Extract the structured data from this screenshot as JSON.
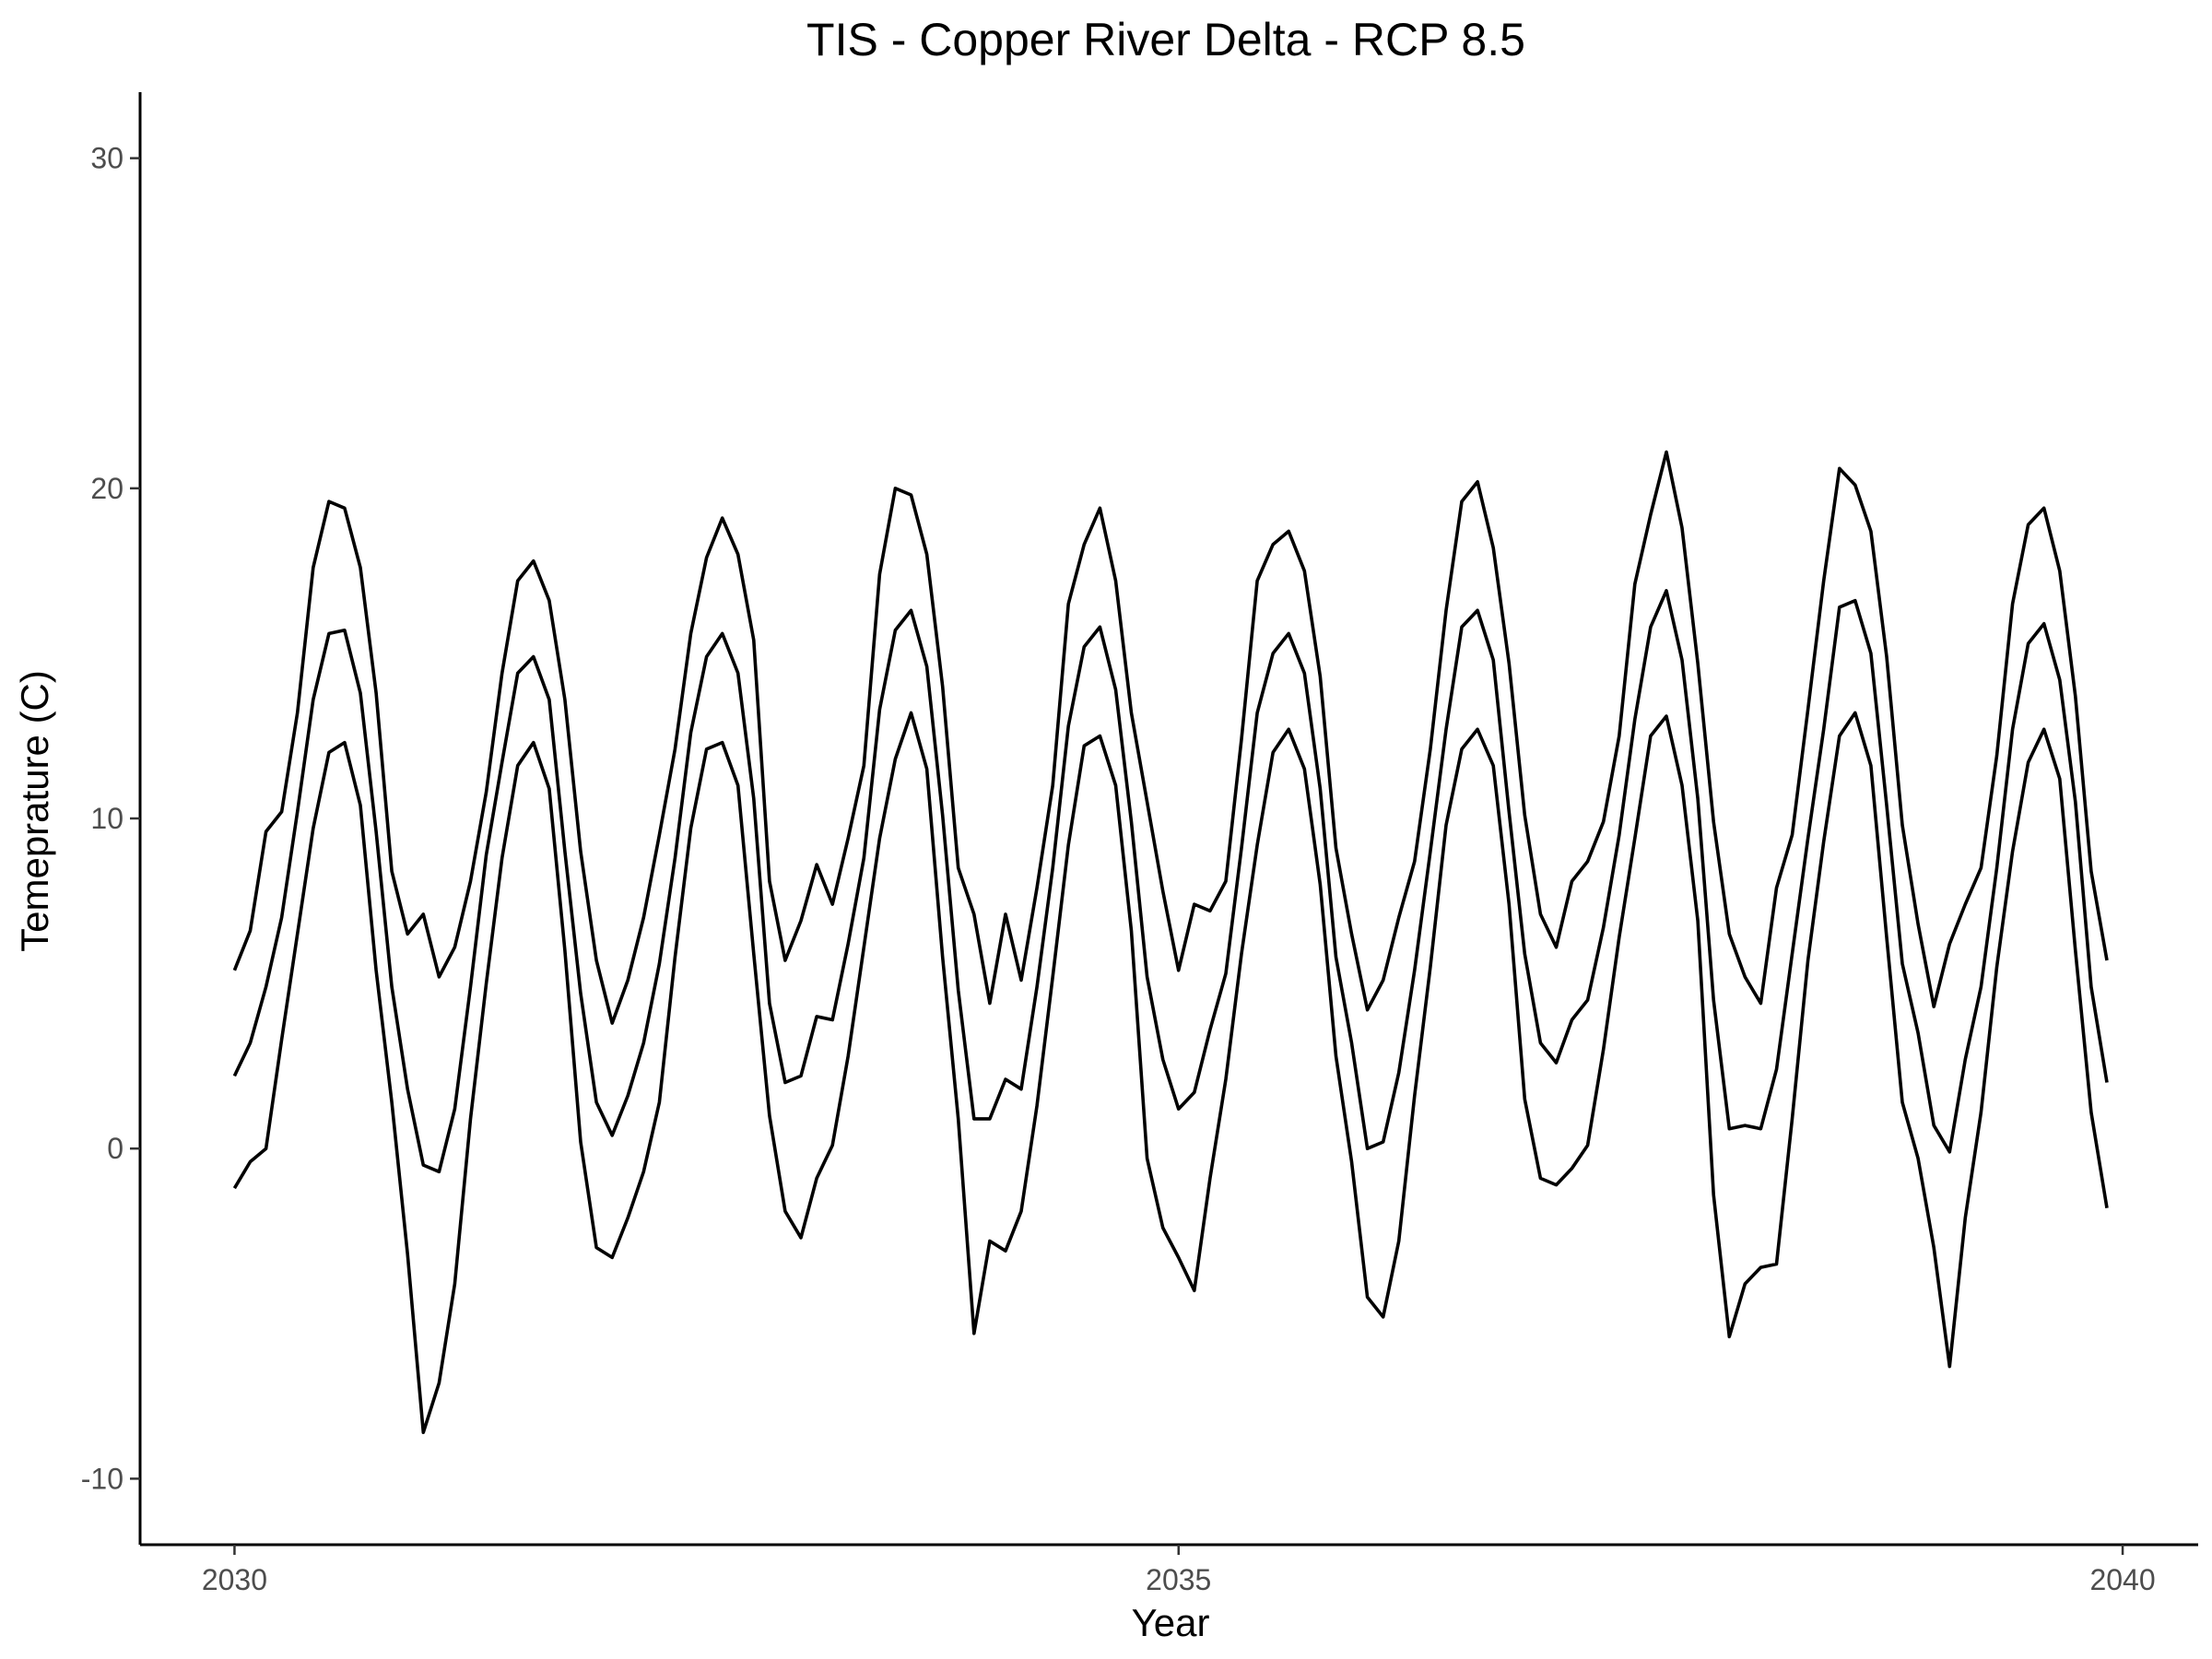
{
  "chart_data": {
    "type": "line",
    "title": "TIS - Copper River Delta - RCP 8.5",
    "xlabel": "Year",
    "ylabel": "Temeprature (C)",
    "xlim": [
      2029.5,
      2040.4
    ],
    "ylim": [
      -12,
      32
    ],
    "x_ticks": [
      2030,
      2035,
      2040
    ],
    "y_ticks": [
      -10,
      0,
      10,
      20,
      30
    ],
    "x_tick_labels": [
      "2030",
      "2035",
      "2040"
    ],
    "y_tick_labels": [
      "-10",
      "0",
      "10",
      "20",
      "30"
    ],
    "grid": false,
    "legend": "none",
    "line_color": "#000000",
    "x_start": 2030,
    "x_step_months": 1,
    "series": [
      {
        "values": [
          5.4,
          6.6,
          9.6,
          10.2,
          13.2,
          17.6,
          19.6,
          19.4,
          17.6,
          13.8,
          8.4,
          6.5,
          7.1,
          5.2,
          6.1,
          8.1,
          10.8,
          14.4,
          17.2,
          17.8,
          16.6,
          13.6,
          9.0,
          5.7,
          3.8,
          5.1,
          7.0,
          9.5,
          12.1,
          15.6,
          17.9,
          19.1,
          18.0,
          15.4,
          8.1,
          5.7,
          6.9,
          8.6,
          7.4,
          9.4,
          11.6,
          17.4,
          20.0,
          19.8,
          18.0,
          14.0,
          8.5,
          7.1,
          4.4,
          7.1,
          5.1,
          7.9,
          11.0,
          16.5,
          18.3,
          19.4,
          17.2,
          13.2,
          10.5,
          7.8,
          5.4,
          7.4,
          7.2,
          8.1,
          12.4,
          17.2,
          18.3,
          18.7,
          17.5,
          14.3,
          9.1,
          6.5,
          4.2,
          5.1,
          7.0,
          8.7,
          12.1,
          16.3,
          19.6,
          20.2,
          18.2,
          14.7,
          10.1,
          7.1,
          6.1,
          8.1,
          8.7,
          9.9,
          12.5,
          17.1,
          19.2,
          21.1,
          18.8,
          14.7,
          9.9,
          6.5,
          5.2,
          4.4,
          7.9,
          9.5,
          13.3,
          17.2,
          20.6,
          20.1,
          18.7,
          14.9,
          9.8,
          6.8,
          4.3,
          6.2,
          7.4,
          8.5,
          11.9,
          16.5,
          18.9,
          19.4,
          17.5,
          13.7,
          8.4,
          5.7
        ]
      },
      {
        "values": [
          2.2,
          3.2,
          4.9,
          7.0,
          10.2,
          13.6,
          15.6,
          15.7,
          13.8,
          9.6,
          4.9,
          1.8,
          -0.5,
          -0.7,
          1.2,
          4.9,
          8.9,
          11.7,
          14.4,
          14.9,
          13.6,
          9.0,
          4.7,
          1.4,
          0.4,
          1.6,
          3.2,
          5.6,
          8.8,
          12.6,
          14.9,
          15.6,
          14.4,
          10.6,
          4.4,
          2.0,
          2.2,
          4.0,
          3.9,
          6.2,
          8.8,
          13.3,
          15.7,
          16.3,
          14.6,
          10.1,
          4.8,
          0.9,
          0.9,
          2.1,
          1.8,
          4.9,
          8.5,
          12.8,
          15.2,
          15.8,
          13.9,
          9.9,
          5.2,
          2.7,
          1.2,
          1.7,
          3.6,
          5.3,
          9.1,
          13.2,
          15.0,
          15.6,
          14.4,
          10.9,
          5.8,
          3.2,
          0.0,
          0.2,
          2.3,
          5.4,
          9.0,
          12.7,
          15.8,
          16.3,
          14.8,
          10.2,
          5.9,
          3.2,
          2.6,
          3.9,
          4.5,
          6.7,
          9.5,
          13.0,
          15.8,
          16.9,
          14.8,
          10.6,
          4.5,
          0.6,
          0.7,
          0.6,
          2.4,
          5.9,
          9.4,
          12.7,
          16.4,
          16.6,
          15.0,
          10.4,
          5.6,
          3.5,
          0.7,
          -0.1,
          2.7,
          4.9,
          8.5,
          12.7,
          15.3,
          15.9,
          14.2,
          10.5,
          4.9,
          2.0
        ]
      },
      {
        "values": [
          -1.2,
          -0.4,
          0.0,
          3.3,
          6.5,
          9.7,
          12.0,
          12.3,
          10.4,
          5.4,
          1.4,
          -3.2,
          -8.6,
          -7.1,
          -4.1,
          0.9,
          5.0,
          8.8,
          11.6,
          12.3,
          10.9,
          6.0,
          0.2,
          -3.0,
          -3.3,
          -2.1,
          -0.7,
          1.4,
          5.8,
          9.7,
          12.1,
          12.3,
          11.0,
          5.9,
          1.0,
          -1.9,
          -2.7,
          -0.9,
          0.1,
          2.8,
          6.1,
          9.4,
          11.8,
          13.2,
          11.5,
          5.8,
          0.9,
          -5.6,
          -2.8,
          -3.1,
          -1.9,
          1.3,
          5.2,
          9.2,
          12.2,
          12.5,
          11.0,
          6.6,
          -0.3,
          -2.4,
          -3.3,
          -4.3,
          -0.9,
          2.1,
          5.9,
          9.2,
          12.0,
          12.7,
          11.5,
          8.0,
          2.8,
          -0.4,
          -4.5,
          -5.1,
          -2.8,
          1.6,
          5.5,
          9.8,
          12.1,
          12.7,
          11.6,
          7.4,
          1.5,
          -0.9,
          -1.1,
          -0.6,
          0.1,
          3.0,
          6.4,
          9.4,
          12.5,
          13.1,
          11.0,
          6.9,
          -1.4,
          -5.7,
          -4.1,
          -3.6,
          -3.5,
          0.9,
          5.7,
          9.3,
          12.5,
          13.2,
          11.6,
          6.4,
          1.4,
          -0.3,
          -3.0,
          -6.6,
          -2.1,
          1.1,
          5.5,
          9.0,
          11.7,
          12.7,
          11.2,
          6.0,
          1.1,
          -1.8
        ]
      }
    ]
  }
}
